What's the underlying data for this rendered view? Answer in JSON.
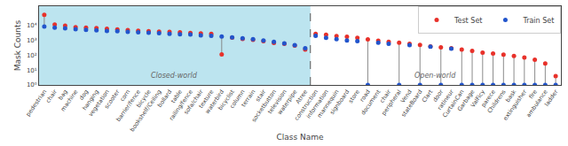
{
  "chart_data": {
    "type": "scatter",
    "xlabel": "Class Name",
    "ylabel": "Mask Counts",
    "categories": [
      "pedestrian",
      "chair",
      "bag",
      "machine",
      "dog",
      "hanging",
      "vegetation",
      "scooter",
      "corn",
      "barrier/fence",
      "bicycle",
      "bookshelf/Ceiling",
      "bollard",
      "table",
      "railing/fence",
      "sofa/chair",
      "texture",
      "waterbird",
      "bicyclist",
      "column",
      "terrain",
      "stair",
      "socketbutton",
      "television",
      "waterpipe",
      "Atree",
      "construction",
      "information",
      "mannequin",
      "signboard",
      "store",
      "road",
      "document",
      "chair",
      "peripheral",
      "Vend",
      "stateBoard",
      "Clart",
      "door",
      "ratineur",
      "CurtainCan",
      "Garbage",
      "ValFicy",
      "parece",
      "Childrens",
      "bask",
      "extinguisher",
      "fire",
      "ambulance",
      "ladder"
    ],
    "series": [
      {
        "name": "Test Set",
        "color": "#e8312a",
        "values": [
          52000,
          11500,
          9800,
          7800,
          7200,
          6700,
          6000,
          5400,
          4900,
          4500,
          4200,
          3900,
          3700,
          3500,
          3200,
          2950,
          2750,
          115,
          1550,
          1250,
          1080,
          880,
          680,
          590,
          440,
          245,
          2800,
          2400,
          1950,
          1750,
          1480,
          1180,
          960,
          790,
          690,
          590,
          490,
          390,
          345,
          295,
          245,
          195,
          148,
          128,
          108,
          88,
          70,
          50,
          28,
          4
        ]
      },
      {
        "name": "Train Set",
        "color": "#2255cc",
        "values": [
          8500,
          7200,
          6400,
          5600,
          5100,
          4700,
          4300,
          4100,
          3800,
          3500,
          3300,
          3000,
          2800,
          2600,
          2500,
          2200,
          2000,
          1800,
          1600,
          1400,
          1200,
          1000,
          800,
          620,
          480,
          300,
          2000,
          1500,
          1200,
          1000,
          880,
          1,
          700,
          580,
          1,
          480,
          1,
          380,
          1,
          280,
          1,
          1,
          1,
          1,
          1,
          1,
          1,
          1,
          1,
          1
        ]
      }
    ],
    "annotations": [
      {
        "text": "Closed-world",
        "from": "pedestrian",
        "to": "Atree",
        "color": "#bce4ef"
      },
      {
        "text": "Open-world",
        "from": "construction",
        "to": "ladder"
      }
    ],
    "log": "y",
    "ylim": [
      1,
      200000
    ],
    "yticks": [
      {
        "value": 1,
        "label": "10⁰"
      },
      {
        "value": 10,
        "label": "10¹"
      },
      {
        "value": 100,
        "label": "10²"
      },
      {
        "value": 1000,
        "label": "10³"
      },
      {
        "value": 10000,
        "label": "10⁴"
      }
    ],
    "grid": false,
    "legend": "upper right",
    "marker": "circle"
  }
}
